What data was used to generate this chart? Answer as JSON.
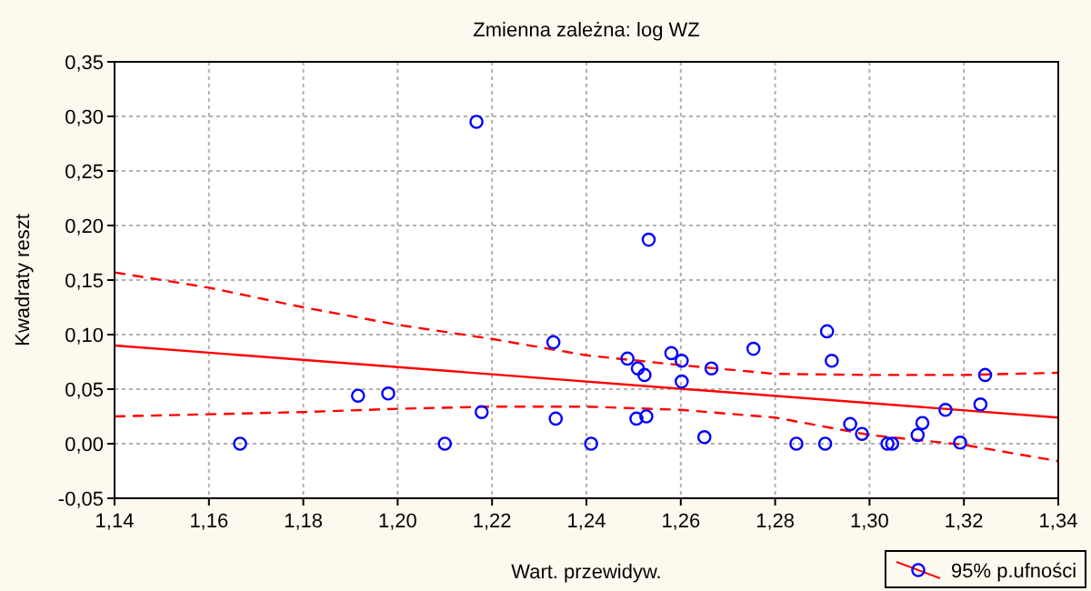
{
  "chart_data": {
    "type": "scatter",
    "title": "Zmienna zależna: log WZ",
    "xlabel": "Wart. przewidyw.",
    "ylabel": "Kwadraty reszt",
    "xlim": [
      1.14,
      1.34
    ],
    "ylim": [
      -0.05,
      0.35
    ],
    "xticks": [
      {
        "value": 1.14,
        "label": "1,14"
      },
      {
        "value": 1.16,
        "label": "1,16"
      },
      {
        "value": 1.18,
        "label": "1,18"
      },
      {
        "value": 1.2,
        "label": "1,20"
      },
      {
        "value": 1.22,
        "label": "1,22"
      },
      {
        "value": 1.24,
        "label": "1,24"
      },
      {
        "value": 1.26,
        "label": "1,26"
      },
      {
        "value": 1.28,
        "label": "1,28"
      },
      {
        "value": 1.3,
        "label": "1,30"
      },
      {
        "value": 1.32,
        "label": "1,32"
      },
      {
        "value": 1.34,
        "label": "1,34"
      }
    ],
    "yticks": [
      {
        "value": -0.05,
        "label": "-0,05"
      },
      {
        "value": 0,
        "label": "0,00"
      },
      {
        "value": 0.05,
        "label": "0,05"
      },
      {
        "value": 0.1,
        "label": "0,10"
      },
      {
        "value": 0.15,
        "label": "0,15"
      },
      {
        "value": 0.2,
        "label": "0,20"
      },
      {
        "value": 0.25,
        "label": "0,25"
      },
      {
        "value": 0.3,
        "label": "0,30"
      },
      {
        "value": 0.35,
        "label": "0,35"
      }
    ],
    "grid": true,
    "legend": "bottom right",
    "series": [
      {
        "name": "95% p.ufności",
        "color": "#0000ff",
        "marker": "circle",
        "x": [
          1.1666,
          1.1916,
          1.198,
          1.21,
          1.2167,
          1.2178,
          1.233,
          1.2335,
          1.241,
          1.2487,
          1.2509,
          1.2523,
          1.2506,
          1.2527,
          1.2532,
          1.258,
          1.2602,
          1.2602,
          1.265,
          1.2665,
          1.2754,
          1.2845,
          1.2906,
          1.291,
          1.292,
          1.2959,
          1.2984,
          1.3038,
          1.3048,
          1.3102,
          1.3112,
          1.3161,
          1.3192,
          1.3235,
          1.3245
        ],
        "values": [
          0,
          0.044,
          0.046,
          0,
          0.295,
          0.029,
          0.093,
          0.023,
          0,
          0.078,
          0.069,
          0.063,
          0.023,
          0.025,
          0.187,
          0.083,
          0.076,
          0.057,
          0.006,
          0.069,
          0.087,
          0,
          0,
          0.103,
          0.076,
          0.018,
          0.009,
          0,
          0,
          0.008,
          0.019,
          0.031,
          0.001,
          0.036,
          0.063
        ]
      },
      {
        "type": "line",
        "color": "#ff0000",
        "line_style": "solid",
        "marker": "none",
        "x": [
          1.14,
          1.34
        ],
        "values": [
          0.09,
          0.024
        ]
      },
      {
        "type": "line",
        "color": "#ff0000",
        "line_style": "dashed",
        "marker": "none",
        "x": [
          1.14,
          1.16,
          1.18,
          1.2,
          1.22,
          1.24,
          1.26,
          1.28,
          1.3,
          1.32,
          1.34
        ],
        "values": [
          0.157,
          0.143,
          0.125,
          0.109,
          0.096,
          0.081,
          0.072,
          0.064,
          0.063,
          0.063,
          0.065
        ]
      },
      {
        "type": "line",
        "color": "#ff0000",
        "line_style": "dashed",
        "marker": "none",
        "x": [
          1.14,
          1.16,
          1.18,
          1.2,
          1.22,
          1.24,
          1.26,
          1.28,
          1.3,
          1.32,
          1.34
        ],
        "values": [
          0.025,
          0.027,
          0.029,
          0.032,
          0.034,
          0.034,
          0.031,
          0.024,
          0.008,
          -0.001,
          -0.016
        ]
      }
    ]
  }
}
